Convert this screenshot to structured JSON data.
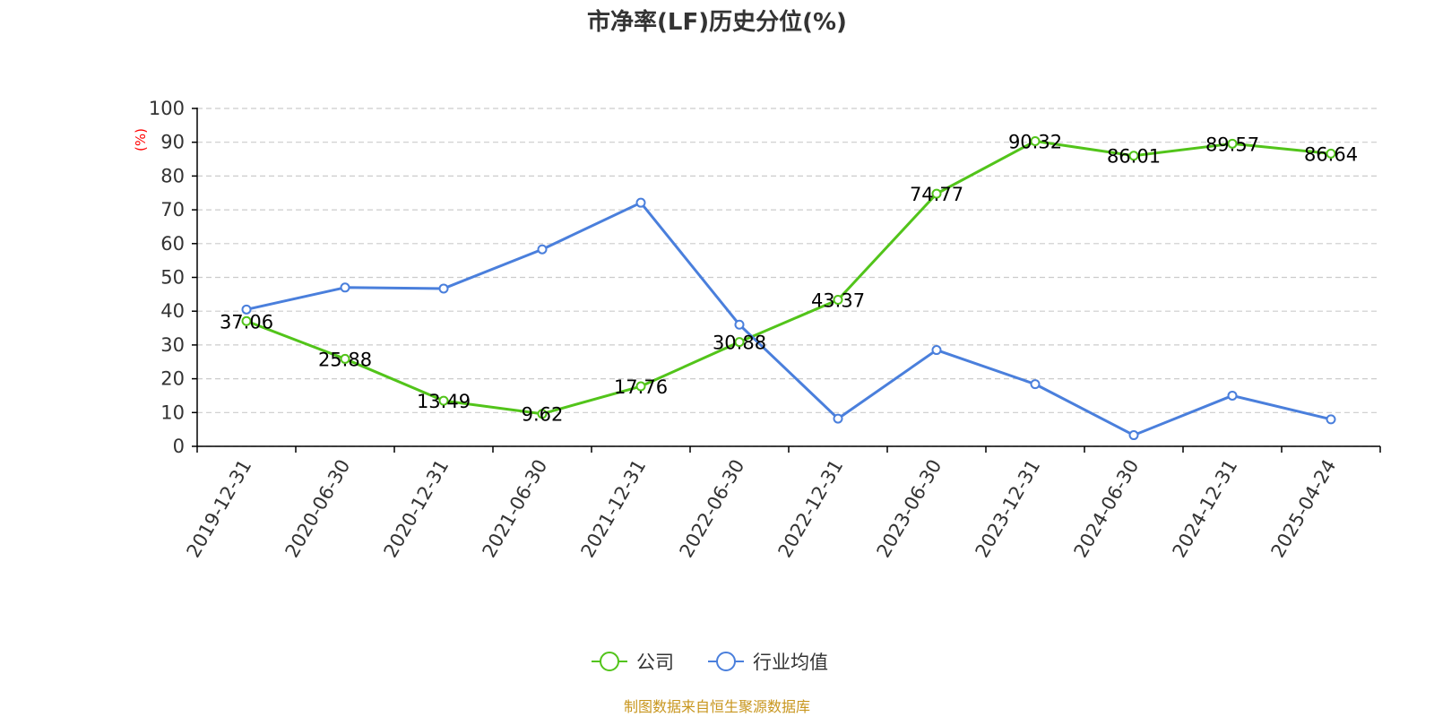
{
  "chart_data": {
    "type": "line",
    "title": "市净率(LF)历史分位(%)",
    "y_unit": "(%)",
    "ylim": [
      0,
      100
    ],
    "y_ticks": [
      0,
      10,
      20,
      30,
      40,
      50,
      60,
      70,
      80,
      90,
      100
    ],
    "grid": true,
    "legend_position": "bottom-center",
    "categories": [
      "2019-12-31",
      "2020-06-30",
      "2020-12-31",
      "2021-06-30",
      "2021-12-31",
      "2022-06-30",
      "2022-12-31",
      "2023-06-30",
      "2023-12-31",
      "2024-06-30",
      "2024-12-31",
      "2025-04-24"
    ],
    "series": [
      {
        "name": "公司",
        "color": "#52c41a",
        "show_labels": true,
        "values": [
          37.06,
          25.88,
          13.49,
          9.62,
          17.76,
          30.88,
          43.37,
          74.77,
          90.32,
          86.01,
          89.57,
          86.64
        ]
      },
      {
        "name": "行业均值",
        "color": "#4a7fdc",
        "show_labels": false,
        "values": [
          40.5,
          47.0,
          46.7,
          58.3,
          72.1,
          36.0,
          8.2,
          28.5,
          18.4,
          3.3,
          15.0,
          8.0
        ]
      }
    ],
    "source": "制图数据来自恒生聚源数据库",
    "colors": {
      "unit": "#ff0000",
      "source": "#c8961e",
      "grid": "#cccccc",
      "axis": "#000000"
    }
  }
}
